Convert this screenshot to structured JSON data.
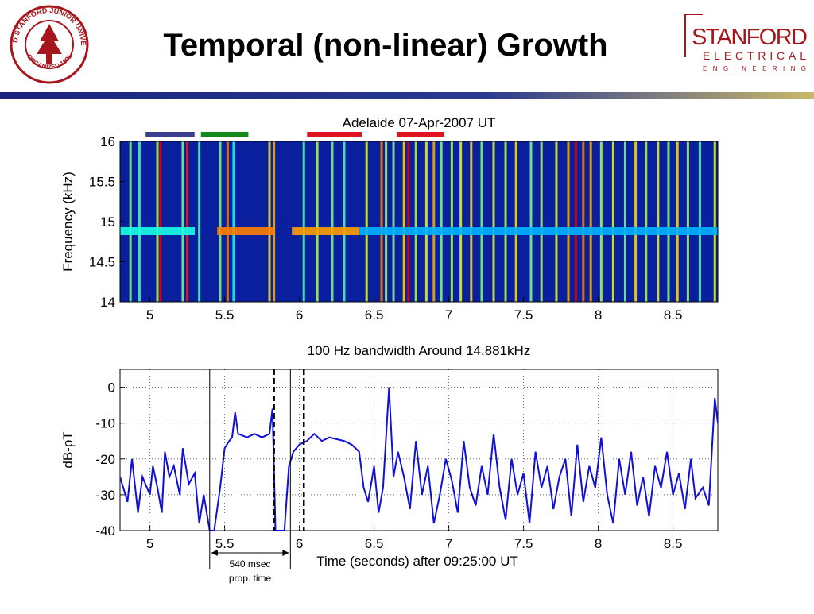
{
  "header": {
    "title": "Temporal (non-linear) Growth",
    "seal": [
      "LELAND STANFORD JUNIOR UNIVERSITY",
      "ORGANIZED 1891"
    ],
    "logo": [
      "STANFORD",
      "ELECTRICAL",
      "ENGINEERING"
    ]
  },
  "chart_data": [
    {
      "type": "spectrogram",
      "title": "Adelaide 07-Apr-2007 UT",
      "ylabel": "Frequency (kHz)",
      "xlim": [
        4.8,
        8.8
      ],
      "ylim": [
        14,
        16
      ],
      "xticks": [
        5,
        5.5,
        6,
        6.5,
        7,
        7.5,
        8,
        8.5
      ],
      "yticks": [
        14,
        14.5,
        15,
        15.5,
        16
      ],
      "tone_frequency": 14.881,
      "streaks": {
        "x": [
          4.87,
          4.93,
          5.05,
          5.07,
          5.22,
          5.25,
          5.33,
          5.47,
          5.52,
          5.56,
          5.8,
          5.83,
          6.03,
          6.12,
          6.22,
          6.3,
          6.45,
          6.55,
          6.58,
          6.63,
          6.7,
          6.73,
          6.78,
          6.85,
          6.9,
          6.95,
          7.02,
          7.08,
          7.15,
          7.22,
          7.3,
          7.38,
          7.45,
          7.55,
          7.62,
          7.72,
          7.8,
          7.85,
          7.9,
          7.95,
          8.02,
          8.1,
          8.18,
          8.25,
          8.32,
          8.4,
          8.47,
          8.53,
          8.6,
          8.68,
          8.78
        ],
        "values": [
          0.5,
          0.45,
          0.55,
          0.9,
          0.5,
          0.85,
          0.45,
          0.5,
          0.75,
          0.4,
          0.65,
          0.7,
          0.45,
          0.55,
          0.5,
          0.45,
          0.6,
          0.75,
          0.55,
          0.5,
          0.65,
          0.9,
          0.55,
          0.6,
          0.7,
          0.5,
          0.55,
          0.6,
          0.65,
          0.5,
          0.6,
          0.55,
          0.65,
          0.5,
          0.55,
          0.6,
          0.7,
          0.9,
          0.75,
          0.7,
          0.55,
          0.6,
          0.5,
          0.65,
          0.55,
          0.6,
          0.5,
          0.65,
          0.55,
          0.45,
          0.6
        ]
      },
      "tones": [
        {
          "x": [
            4.8,
            5.3
          ],
          "value": 0.4
        },
        {
          "x": [
            5.45,
            5.83
          ],
          "value": 0.75
        },
        {
          "x": [
            5.95,
            6.4
          ],
          "value": 0.72
        },
        {
          "x": [
            6.4,
            8.8
          ],
          "value": 0.3
        }
      ],
      "markers": [
        {
          "color": "#3a3f8f",
          "x": [
            4.95,
            5.32
          ]
        },
        {
          "color": "#138a1c",
          "x": [
            5.32,
            5.68
          ]
        },
        {
          "color": "#e0141e",
          "x": [
            6.03,
            6.44
          ]
        },
        {
          "color": "#e0141e",
          "x": [
            6.63,
            6.99
          ]
        }
      ]
    },
    {
      "type": "line",
      "title": "100 Hz bandwidth Around 14.881kHz",
      "ylabel": "dB-pT",
      "xlabel": "Time (seconds) after 09:25:00 UT",
      "xlim": [
        4.8,
        8.8
      ],
      "ylim": [
        -40,
        5
      ],
      "xticks": [
        5,
        5.5,
        6,
        6.5,
        7,
        7.5,
        8,
        8.5
      ],
      "yticks": [
        -40,
        -30,
        -20,
        -10,
        0
      ],
      "grid": true,
      "x": [
        4.8,
        4.85,
        4.88,
        4.92,
        4.95,
        5.0,
        5.02,
        5.05,
        5.08,
        5.1,
        5.13,
        5.16,
        5.2,
        5.22,
        5.26,
        5.3,
        5.33,
        5.36,
        5.4,
        5.43,
        5.47,
        5.5,
        5.53,
        5.55,
        5.57,
        5.59,
        5.65,
        5.7,
        5.75,
        5.8,
        5.82,
        5.84,
        5.9,
        5.93,
        5.96,
        6.0,
        6.05,
        6.1,
        6.15,
        6.2,
        6.3,
        6.35,
        6.4,
        6.43,
        6.46,
        6.5,
        6.53,
        6.56,
        6.6,
        6.63,
        6.66,
        6.7,
        6.74,
        6.78,
        6.82,
        6.86,
        6.9,
        6.94,
        6.98,
        7.02,
        7.06,
        7.1,
        7.14,
        7.18,
        7.22,
        7.26,
        7.3,
        7.34,
        7.38,
        7.42,
        7.46,
        7.5,
        7.54,
        7.58,
        7.62,
        7.66,
        7.7,
        7.74,
        7.78,
        7.82,
        7.86,
        7.9,
        7.94,
        7.98,
        8.02,
        8.06,
        8.1,
        8.14,
        8.18,
        8.22,
        8.26,
        8.3,
        8.34,
        8.38,
        8.42,
        8.46,
        8.5,
        8.54,
        8.58,
        8.62,
        8.65,
        8.7,
        8.74,
        8.78,
        8.8
      ],
      "series": [
        {
          "color": "#1010d8",
          "values": [
            -25,
            -32,
            -20,
            -35,
            -25,
            -30,
            -22,
            -28,
            -35,
            -18,
            -25,
            -22,
            -30,
            -17,
            -27,
            -24,
            -38,
            -30,
            -40,
            -40,
            -28,
            -17,
            -15,
            -14,
            -7,
            -13,
            -14,
            -13,
            -14,
            -13,
            -6,
            -40,
            -40,
            -22,
            -18,
            -16,
            -15,
            -13,
            -15,
            -14,
            -15,
            -16,
            -18,
            -28,
            -32,
            -22,
            -35,
            -28,
            0,
            -25,
            -18,
            -25,
            -34,
            -15,
            -30,
            -22,
            -38,
            -30,
            -20,
            -26,
            -35,
            -15,
            -28,
            -33,
            -22,
            -30,
            -13,
            -28,
            -37,
            -20,
            -30,
            -24,
            -38,
            -18,
            -28,
            -22,
            -34,
            -25,
            -20,
            -36,
            -16,
            -32,
            -22,
            -28,
            -14,
            -30,
            -38,
            -20,
            -30,
            -18,
            -33,
            -25,
            -36,
            -22,
            -28,
            -18,
            -30,
            -24,
            -34,
            -20,
            -31,
            -28,
            -33,
            -3,
            -10
          ]
        }
      ],
      "vlines": [
        {
          "x": 5.4,
          "dash": false
        },
        {
          "x": 5.83,
          "dash": true
        },
        {
          "x": 5.94,
          "dash": false
        },
        {
          "x": 6.03,
          "dash": true
        }
      ],
      "annotation": {
        "text": [
          "540 msec",
          "prop. time"
        ],
        "x": [
          5.4,
          5.94
        ]
      }
    }
  ]
}
